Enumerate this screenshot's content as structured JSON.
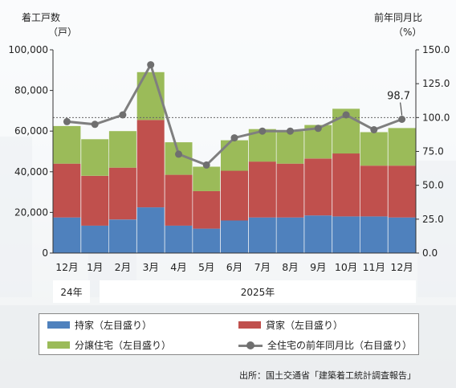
{
  "chart_data": {
    "type": "bar",
    "stacked": true,
    "categories": [
      "12月",
      "1月",
      "2月",
      "3月",
      "4月",
      "5月",
      "6月",
      "7月",
      "8月",
      "9月",
      "10月",
      "11月",
      "12月"
    ],
    "year_groups": [
      {
        "label": "24年",
        "count": 1
      },
      {
        "label": "2025年",
        "count": 12
      }
    ],
    "series": [
      {
        "name": "持家（左目盛り）",
        "color": "#4f81bd",
        "axis": "left",
        "values": [
          17500,
          13500,
          16500,
          22500,
          13500,
          12000,
          16000,
          17500,
          17500,
          18500,
          18000,
          18000,
          17500
        ]
      },
      {
        "name": "貸家（左目盛り）",
        "color": "#c0504d",
        "axis": "left",
        "values": [
          26500,
          24500,
          25500,
          43000,
          25000,
          18500,
          24500,
          27500,
          26500,
          28000,
          31000,
          25000,
          25500
        ]
      },
      {
        "name": "分譲住宅（左目盛り）",
        "color": "#9bbb59",
        "axis": "left",
        "values": [
          18500,
          18000,
          18000,
          23500,
          16000,
          12000,
          15000,
          16000,
          16000,
          16500,
          22000,
          16500,
          18500
        ]
      }
    ],
    "line": {
      "name": "全住宅の前年同月比（右目盛り）",
      "color": "#6f6f6f",
      "axis": "right",
      "values": [
        97,
        95,
        102,
        139,
        73,
        65,
        85,
        90,
        90,
        92,
        102,
        91,
        98.7
      ]
    },
    "y_left": {
      "title": "着工戸数",
      "unit": "（戸）",
      "min": 0,
      "max": 100000,
      "ticks": [
        "0",
        "20,000",
        "40,000",
        "60,000",
        "80,000",
        "100,000"
      ]
    },
    "y_right": {
      "title": "前年同月比",
      "unit": "（%）",
      "min": 0,
      "max": 150,
      "ticks": [
        "0.0",
        "25.0",
        "50.0",
        "75.0",
        "100.0",
        "125.0",
        "150.0"
      ]
    },
    "reference_line": 100,
    "annotation": "98.7",
    "source": "出所：国土交通省「建築着工統計調査報告」"
  }
}
